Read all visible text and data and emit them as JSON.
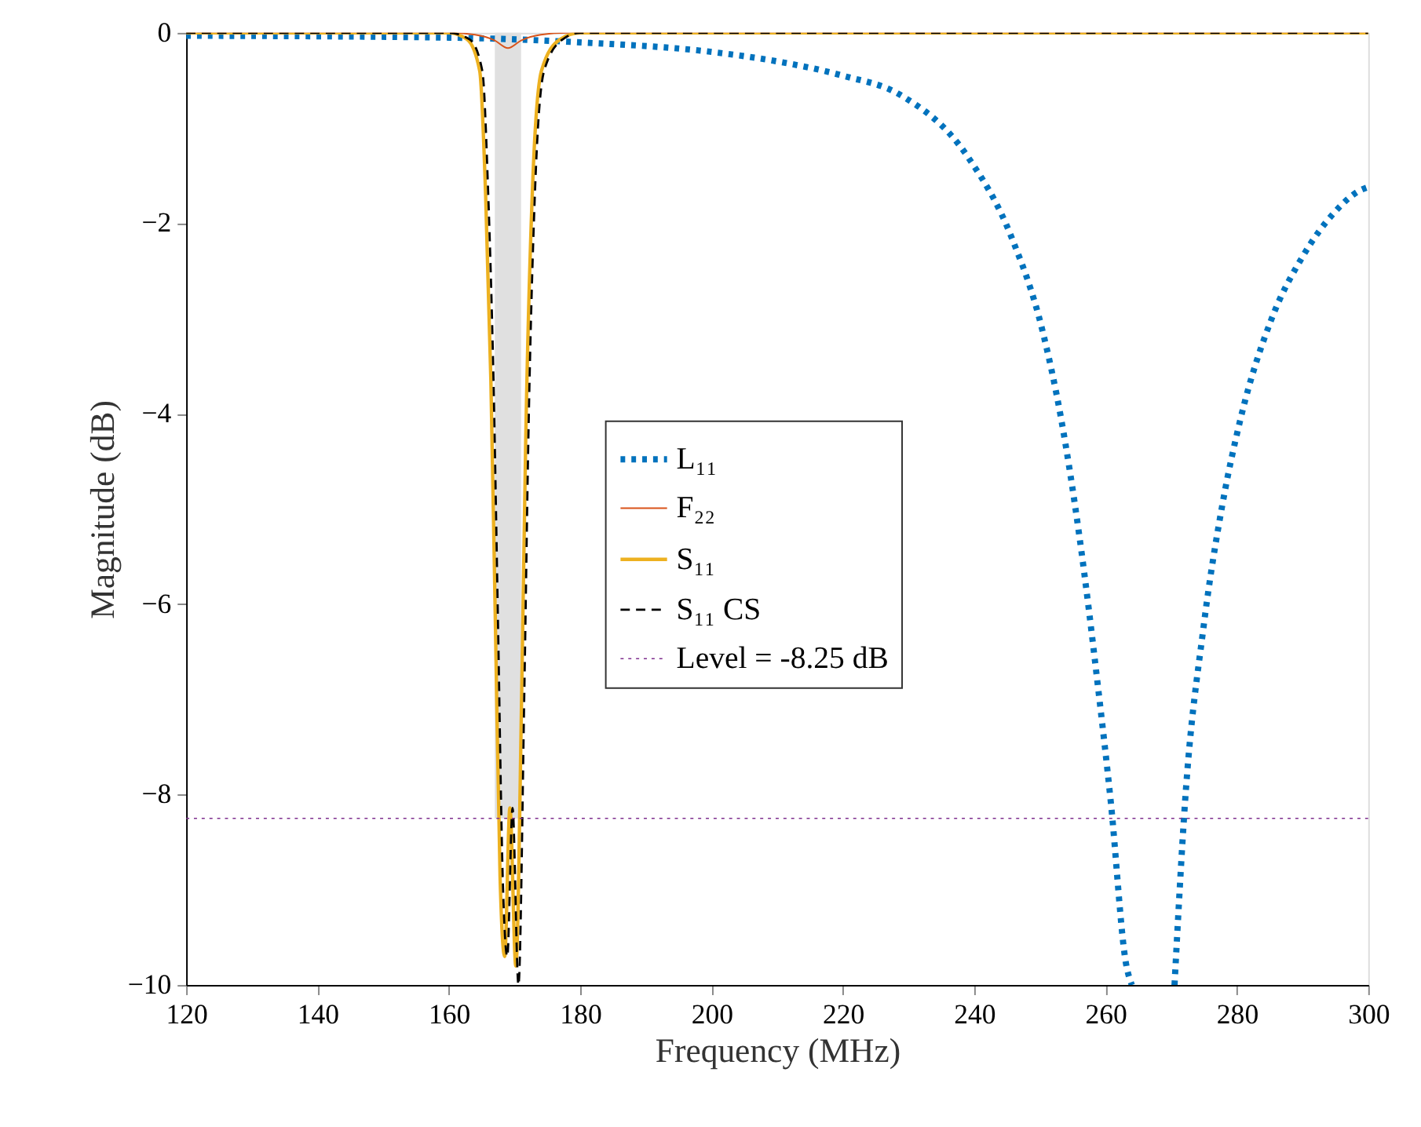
{
  "chart_data": {
    "type": "line",
    "xlabel": "Frequency (MHz)",
    "ylabel": "Magnitude (dB)",
    "xlim": [
      120,
      300
    ],
    "xticks": [
      120,
      140,
      160,
      180,
      200,
      220,
      240,
      260,
      280,
      300
    ],
    "ylim": [
      -10,
      0
    ],
    "yticks": [
      -10,
      -8,
      -6,
      -4,
      -2,
      0
    ],
    "grid": false,
    "legend": "center",
    "series": [
      {
        "name": "L₁₁",
        "color": "#0072bd",
        "line_style": "dotted",
        "x": [
          120,
          160,
          180,
          200,
          210,
          220,
          228.7,
          239,
          245.7,
          250.4,
          253.2,
          256,
          258.9,
          260.8,
          263.1,
          264,
          267,
          270.5,
          272.1,
          274.9,
          277.8,
          280.6,
          285.3,
          290,
          294.8,
          298.6,
          300
        ],
        "values": [
          -0.03,
          -0.05,
          -0.1,
          -0.2,
          -0.3,
          -0.45,
          -0.65,
          -1.3,
          -2.15,
          -3.13,
          -4.04,
          -5.28,
          -6.9,
          -8.08,
          -9.77,
          -10,
          null,
          -10,
          -8.08,
          -6.25,
          -4.95,
          -4.04,
          -3.0,
          -2.35,
          -1.89,
          -1.66,
          -1.62
        ]
      },
      {
        "name": "F₂₂",
        "color": "#d95319",
        "line_style": "solid",
        "x": [
          120,
          160,
          164,
          167,
          169,
          171,
          174,
          178,
          300
        ],
        "values": [
          0,
          0,
          -0.02,
          -0.08,
          -0.16,
          -0.08,
          -0.02,
          0,
          0
        ]
      },
      {
        "name": "S₁₁",
        "color": "#edb120",
        "line_style": "solid",
        "x": [
          120,
          160,
          162.8,
          164.7,
          165.6,
          166.4,
          167.1,
          167.8,
          168.5,
          169.3,
          170.2,
          171.1,
          171.7,
          172.7,
          174.1,
          176.9,
          180,
          300
        ],
        "values": [
          0,
          0,
          -0.07,
          -0.4,
          -1.7,
          -3.65,
          -6.25,
          -8.86,
          -9.7,
          -8.14,
          -9.8,
          -6.9,
          -4.3,
          -1.7,
          -0.4,
          -0.07,
          0,
          0
        ]
      },
      {
        "name": "S₁₁ CS",
        "color": "#000000",
        "line_style": "dashed",
        "x": [
          120,
          160,
          163.2,
          165.1,
          166,
          166.8,
          167.5,
          168.2,
          168.9,
          169.7,
          170.6,
          171.5,
          172.1,
          173.1,
          174.5,
          177.3,
          180,
          300
        ],
        "values": [
          0,
          0,
          -0.07,
          -0.4,
          -1.7,
          -3.65,
          -6.25,
          -8.86,
          -9.7,
          -8.14,
          -10,
          -6.9,
          -4.3,
          -1.7,
          -0.4,
          -0.07,
          0,
          0
        ]
      }
    ],
    "ref_lines": [
      {
        "axis": "y",
        "value": -8.25,
        "label": "Level = -8.25 dB",
        "color": "#7e2f8e",
        "line_style": "dotted"
      }
    ],
    "bands": [
      {
        "axis": "x",
        "from": 167,
        "to": 171,
        "color": "#e0e0e0"
      }
    ]
  }
}
